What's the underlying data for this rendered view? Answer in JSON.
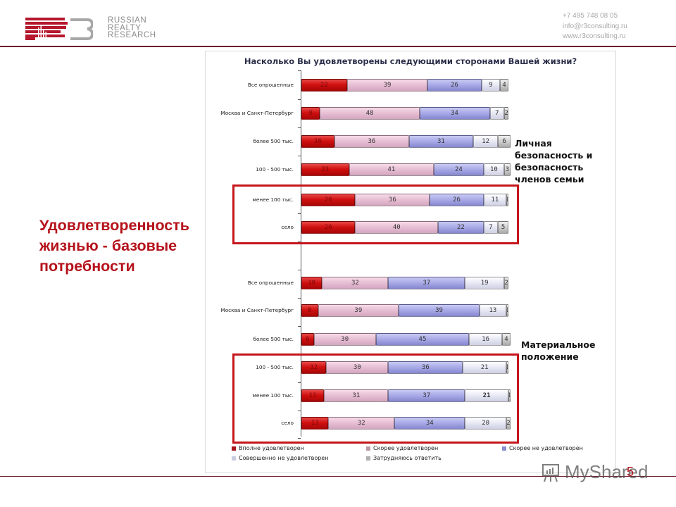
{
  "header": {
    "logo_text": [
      "RUSSIAN",
      "REALTY",
      "RESEARCH"
    ],
    "contacts": [
      "+7 495 748 08 05",
      "info@r3consulting.ru",
      "www.r3consulting.ru"
    ],
    "brand_color": "#b5121b",
    "rule_color": "#6e1a2b"
  },
  "slide": {
    "main_title_lines": [
      "Удовлетворенность",
      "жизнью  - базовые",
      "потребности"
    ],
    "page_number": "5",
    "watermark": "MyShared"
  },
  "annotations": {
    "group1_note_lines": [
      "Личная",
      "безопасность и",
      "безопасность",
      "членов семьи"
    ],
    "group2_note_lines": [
      "Материальное",
      "положение"
    ]
  },
  "chart_data": {
    "type": "bar",
    "orientation": "horizontal",
    "stacked": "percent",
    "title": "Насколько Вы удовлетворены следующими сторонами Вашей жизни?",
    "xlabel": "",
    "ylabel": "",
    "xlim": [
      0,
      100
    ],
    "grid": false,
    "legend_position": "bottom",
    "series_names": [
      "Вполне удовлетворен",
      "Скорее удовлетворен",
      "Скорее не удовлетворен",
      "Совершенно не удовлетворен",
      "Затрудняюсь ответить"
    ],
    "series_colors": [
      "#c81010",
      "#e2b8cf",
      "#a2a4e3",
      "#e3e4f2",
      "#c8c8c8"
    ],
    "groups": [
      {
        "name": "Личная безопасность и безопасность членов семьи",
        "categories": [
          "Все опрошенные",
          "Москва и Санкт-Петербург",
          "более 500 тыс.",
          "100 - 500 тыс.",
          "менее 100 тыс.",
          "село"
        ],
        "series": [
          {
            "name": "Вполне удовлетворен",
            "values": [
              22,
              9,
              16,
              23,
              26,
              26
            ]
          },
          {
            "name": "Скорее удовлетворен",
            "values": [
              39,
              48,
              36,
              41,
              36,
              40
            ]
          },
          {
            "name": "Скорее не удовлетворен",
            "values": [
              26,
              34,
              31,
              24,
              26,
              22
            ]
          },
          {
            "name": "Совершенно не удовлетворен",
            "values": [
              9,
              7,
              12,
              10,
              11,
              7
            ]
          },
          {
            "name": "Затрудняюсь ответить",
            "values": [
              4,
              2,
              6,
              3,
              1,
              5
            ]
          }
        ],
        "highlighted_categories": [
          "менее 100 тыс.",
          "село"
        ]
      },
      {
        "name": "Материальное положение",
        "categories": [
          "Все опрошенные",
          "Москва и Санкт-Петербург",
          "более 500 тыс.",
          "100 - 500 тыс.",
          "менее 100 тыс.",
          "село"
        ],
        "series": [
          {
            "name": "Вполне удовлетворен",
            "values": [
              10,
              8,
              6,
              12,
              11,
              13
            ]
          },
          {
            "name": "Скорее удовлетворен",
            "values": [
              32,
              39,
              30,
              30,
              31,
              32
            ]
          },
          {
            "name": "Скорее не удовлетворен",
            "values": [
              37,
              39,
              45,
              36,
              37,
              34
            ]
          },
          {
            "name": "Совершенно не удовлетворен",
            "values": [
              19,
              13,
              16,
              21,
              21,
              20
            ]
          },
          {
            "name": "Затрудняюсь ответить",
            "values": [
              2,
              1,
              4,
              1,
              1,
              2
            ]
          }
        ],
        "highlighted_categories": [
          "100 - 500 тыс.",
          "менее 100 тыс.",
          "село"
        ]
      }
    ]
  }
}
